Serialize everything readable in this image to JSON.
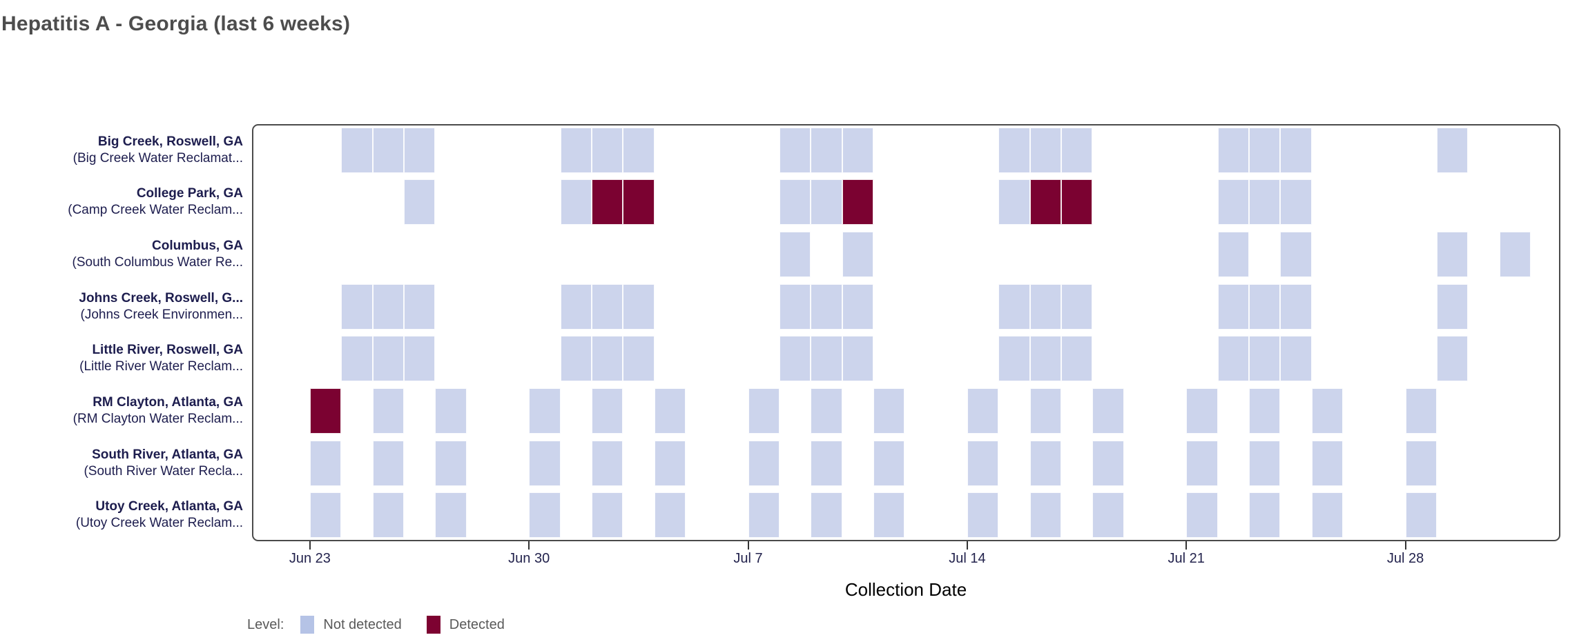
{
  "title": "Hepatitis A - Georgia (last 6 weeks)",
  "xlabel": "Collection Date",
  "legend": {
    "label": "Level:",
    "items": [
      {
        "name": "Not detected",
        "color": "#b5c3e6"
      },
      {
        "name": "Detected",
        "color": "#7d0231"
      }
    ]
  },
  "chart_data": {
    "type": "heatmap",
    "title": "Hepatitis A - Georgia (last 6 weeks)",
    "xlabel": "Collection Date",
    "x_ticks": [
      "Jun 23",
      "Jun 30",
      "Jul 7",
      "Jul 14",
      "Jul 21",
      "Jul 28"
    ],
    "x_tick_day_offsets": [
      0,
      7,
      14,
      21,
      28,
      35
    ],
    "x_axis_start_day_offset": -1.85,
    "x_axis_end_day_offset": 39.95,
    "levels": [
      "Not detected",
      "Detected"
    ],
    "colors": {
      "not_detected": "#ccd4ec",
      "detected": "#7b0231"
    },
    "grid": false,
    "legend_position": "bottom-left",
    "rows": [
      {
        "site": "Big Creek, Roswell, GA",
        "facility": "(Big Creek Water Reclamat...",
        "samples": [
          {
            "date": "Jun 24",
            "level": "Not detected"
          },
          {
            "date": "Jun 25",
            "level": "Not detected"
          },
          {
            "date": "Jun 26",
            "level": "Not detected"
          },
          {
            "date": "Jul 1",
            "level": "Not detected"
          },
          {
            "date": "Jul 2",
            "level": "Not detected"
          },
          {
            "date": "Jul 3",
            "level": "Not detected"
          },
          {
            "date": "Jul 8",
            "level": "Not detected"
          },
          {
            "date": "Jul 9",
            "level": "Not detected"
          },
          {
            "date": "Jul 10",
            "level": "Not detected"
          },
          {
            "date": "Jul 15",
            "level": "Not detected"
          },
          {
            "date": "Jul 16",
            "level": "Not detected"
          },
          {
            "date": "Jul 17",
            "level": "Not detected"
          },
          {
            "date": "Jul 22",
            "level": "Not detected"
          },
          {
            "date": "Jul 23",
            "level": "Not detected"
          },
          {
            "date": "Jul 24",
            "level": "Not detected"
          },
          {
            "date": "Jul 29",
            "level": "Not detected"
          }
        ]
      },
      {
        "site": "College Park, GA",
        "facility": "(Camp Creek Water Reclam...",
        "samples": [
          {
            "date": "Jun 26",
            "level": "Not detected"
          },
          {
            "date": "Jul 1",
            "level": "Not detected"
          },
          {
            "date": "Jul 2",
            "level": "Detected"
          },
          {
            "date": "Jul 3",
            "level": "Detected"
          },
          {
            "date": "Jul 8",
            "level": "Not detected"
          },
          {
            "date": "Jul 9",
            "level": "Not detected"
          },
          {
            "date": "Jul 10",
            "level": "Detected"
          },
          {
            "date": "Jul 15",
            "level": "Not detected"
          },
          {
            "date": "Jul 16",
            "level": "Detected"
          },
          {
            "date": "Jul 17",
            "level": "Detected"
          },
          {
            "date": "Jul 22",
            "level": "Not detected"
          },
          {
            "date": "Jul 23",
            "level": "Not detected"
          },
          {
            "date": "Jul 24",
            "level": "Not detected"
          }
        ]
      },
      {
        "site": "Columbus, GA",
        "facility": "(South Columbus Water Re...",
        "samples": [
          {
            "date": "Jul 8",
            "level": "Not detected"
          },
          {
            "date": "Jul 10",
            "level": "Not detected"
          },
          {
            "date": "Jul 22",
            "level": "Not detected"
          },
          {
            "date": "Jul 24",
            "level": "Not detected"
          },
          {
            "date": "Jul 29",
            "level": "Not detected"
          },
          {
            "date": "Jul 31",
            "level": "Not detected"
          }
        ]
      },
      {
        "site": "Johns Creek, Roswell, G...",
        "facility": "(Johns Creek Environmen...",
        "samples": [
          {
            "date": "Jun 24",
            "level": "Not detected"
          },
          {
            "date": "Jun 25",
            "level": "Not detected"
          },
          {
            "date": "Jun 26",
            "level": "Not detected"
          },
          {
            "date": "Jul 1",
            "level": "Not detected"
          },
          {
            "date": "Jul 2",
            "level": "Not detected"
          },
          {
            "date": "Jul 3",
            "level": "Not detected"
          },
          {
            "date": "Jul 8",
            "level": "Not detected"
          },
          {
            "date": "Jul 9",
            "level": "Not detected"
          },
          {
            "date": "Jul 10",
            "level": "Not detected"
          },
          {
            "date": "Jul 15",
            "level": "Not detected"
          },
          {
            "date": "Jul 16",
            "level": "Not detected"
          },
          {
            "date": "Jul 17",
            "level": "Not detected"
          },
          {
            "date": "Jul 22",
            "level": "Not detected"
          },
          {
            "date": "Jul 23",
            "level": "Not detected"
          },
          {
            "date": "Jul 24",
            "level": "Not detected"
          },
          {
            "date": "Jul 29",
            "level": "Not detected"
          }
        ]
      },
      {
        "site": "Little River, Roswell, GA",
        "facility": "(Little River Water Reclam...",
        "samples": [
          {
            "date": "Jun 24",
            "level": "Not detected"
          },
          {
            "date": "Jun 25",
            "level": "Not detected"
          },
          {
            "date": "Jun 26",
            "level": "Not detected"
          },
          {
            "date": "Jul 1",
            "level": "Not detected"
          },
          {
            "date": "Jul 2",
            "level": "Not detected"
          },
          {
            "date": "Jul 3",
            "level": "Not detected"
          },
          {
            "date": "Jul 8",
            "level": "Not detected"
          },
          {
            "date": "Jul 9",
            "level": "Not detected"
          },
          {
            "date": "Jul 10",
            "level": "Not detected"
          },
          {
            "date": "Jul 15",
            "level": "Not detected"
          },
          {
            "date": "Jul 16",
            "level": "Not detected"
          },
          {
            "date": "Jul 17",
            "level": "Not detected"
          },
          {
            "date": "Jul 22",
            "level": "Not detected"
          },
          {
            "date": "Jul 23",
            "level": "Not detected"
          },
          {
            "date": "Jul 24",
            "level": "Not detected"
          },
          {
            "date": "Jul 29",
            "level": "Not detected"
          }
        ]
      },
      {
        "site": "RM Clayton, Atlanta, GA",
        "facility": "(RM Clayton Water Reclam...",
        "samples": [
          {
            "date": "Jun 23",
            "level": "Detected"
          },
          {
            "date": "Jun 25",
            "level": "Not detected"
          },
          {
            "date": "Jun 27",
            "level": "Not detected"
          },
          {
            "date": "Jun 30",
            "level": "Not detected"
          },
          {
            "date": "Jul 2",
            "level": "Not detected"
          },
          {
            "date": "Jul 4",
            "level": "Not detected"
          },
          {
            "date": "Jul 7",
            "level": "Not detected"
          },
          {
            "date": "Jul 9",
            "level": "Not detected"
          },
          {
            "date": "Jul 11",
            "level": "Not detected"
          },
          {
            "date": "Jul 14",
            "level": "Not detected"
          },
          {
            "date": "Jul 16",
            "level": "Not detected"
          },
          {
            "date": "Jul 18",
            "level": "Not detected"
          },
          {
            "date": "Jul 21",
            "level": "Not detected"
          },
          {
            "date": "Jul 23",
            "level": "Not detected"
          },
          {
            "date": "Jul 25",
            "level": "Not detected"
          },
          {
            "date": "Jul 28",
            "level": "Not detected"
          }
        ]
      },
      {
        "site": "South River, Atlanta, GA",
        "facility": "(South River Water Recla...",
        "samples": [
          {
            "date": "Jun 23",
            "level": "Not detected"
          },
          {
            "date": "Jun 25",
            "level": "Not detected"
          },
          {
            "date": "Jun 27",
            "level": "Not detected"
          },
          {
            "date": "Jun 30",
            "level": "Not detected"
          },
          {
            "date": "Jul 2",
            "level": "Not detected"
          },
          {
            "date": "Jul 4",
            "level": "Not detected"
          },
          {
            "date": "Jul 7",
            "level": "Not detected"
          },
          {
            "date": "Jul 9",
            "level": "Not detected"
          },
          {
            "date": "Jul 11",
            "level": "Not detected"
          },
          {
            "date": "Jul 14",
            "level": "Not detected"
          },
          {
            "date": "Jul 16",
            "level": "Not detected"
          },
          {
            "date": "Jul 18",
            "level": "Not detected"
          },
          {
            "date": "Jul 21",
            "level": "Not detected"
          },
          {
            "date": "Jul 23",
            "level": "Not detected"
          },
          {
            "date": "Jul 25",
            "level": "Not detected"
          },
          {
            "date": "Jul 28",
            "level": "Not detected"
          }
        ]
      },
      {
        "site": "Utoy Creek, Atlanta, GA",
        "facility": "(Utoy Creek Water Reclam...",
        "samples": [
          {
            "date": "Jun 23",
            "level": "Not detected"
          },
          {
            "date": "Jun 25",
            "level": "Not detected"
          },
          {
            "date": "Jun 27",
            "level": "Not detected"
          },
          {
            "date": "Jun 30",
            "level": "Not detected"
          },
          {
            "date": "Jul 2",
            "level": "Not detected"
          },
          {
            "date": "Jul 4",
            "level": "Not detected"
          },
          {
            "date": "Jul 7",
            "level": "Not detected"
          },
          {
            "date": "Jul 9",
            "level": "Not detected"
          },
          {
            "date": "Jul 11",
            "level": "Not detected"
          },
          {
            "date": "Jul 14",
            "level": "Not detected"
          },
          {
            "date": "Jul 16",
            "level": "Not detected"
          },
          {
            "date": "Jul 18",
            "level": "Not detected"
          },
          {
            "date": "Jul 21",
            "level": "Not detected"
          },
          {
            "date": "Jul 23",
            "level": "Not detected"
          },
          {
            "date": "Jul 25",
            "level": "Not detected"
          },
          {
            "date": "Jul 28",
            "level": "Not detected"
          }
        ]
      }
    ]
  }
}
